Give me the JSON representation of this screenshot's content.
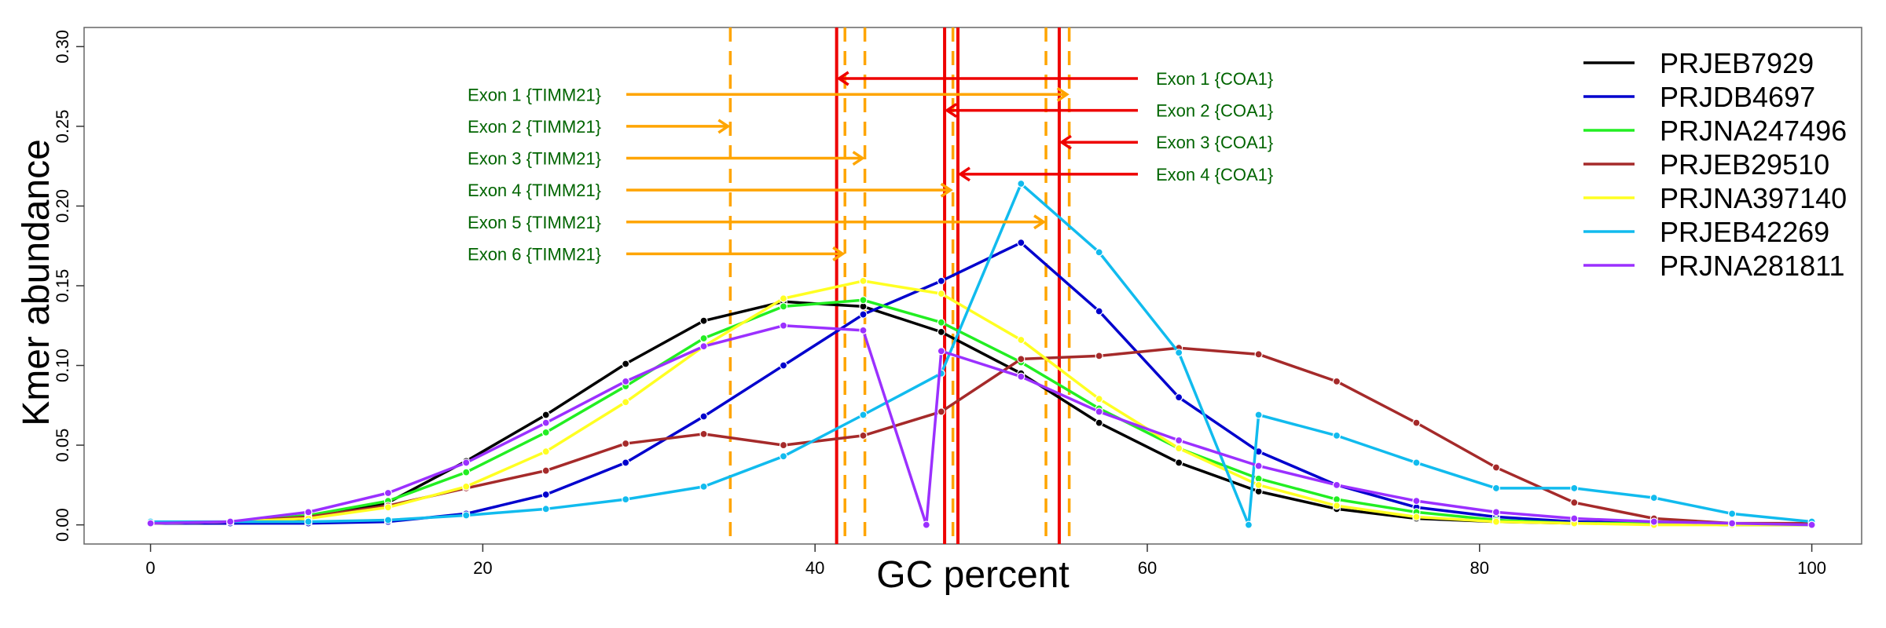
{
  "chart_data": {
    "type": "line",
    "xlabel": "GC percent",
    "ylabel": "Kmer abundance",
    "xlim": [
      -4,
      103
    ],
    "ylim": [
      -0.012,
      0.312
    ],
    "xticks": [
      "0",
      "20",
      "40",
      "60",
      "80",
      "100"
    ],
    "xtick_values": [
      0,
      20,
      40,
      60,
      80,
      100
    ],
    "yticks": [
      "0.00",
      "0.05",
      "0.10",
      "0.15",
      "0.20",
      "0.25",
      "0.30"
    ],
    "ytick_values": [
      0,
      0.05,
      0.1,
      0.15,
      0.2,
      0.25,
      0.3
    ],
    "grid": false,
    "legend_position": "top-right",
    "series": [
      {
        "name": "PRJEB7929",
        "color": "#000000",
        "x": [
          0,
          4.8,
          9.5,
          14.3,
          19,
          23.8,
          28.6,
          33.3,
          38.1,
          42.9,
          47.6,
          52.4,
          57.1,
          61.9,
          66.7,
          71.4,
          76.2,
          81,
          85.7,
          90.5,
          95.2,
          100
        ],
        "y": [
          0.001,
          0.001,
          0.004,
          0.014,
          0.04,
          0.069,
          0.101,
          0.128,
          0.14,
          0.137,
          0.121,
          0.095,
          0.064,
          0.039,
          0.021,
          0.01,
          0.004,
          0.002,
          0.001,
          0.001,
          0,
          0
        ]
      },
      {
        "name": "PRJDB4697",
        "color": "#0000cd",
        "x": [
          0,
          4.8,
          9.5,
          14.3,
          19,
          23.8,
          28.6,
          33.3,
          38.1,
          42.9,
          47.6,
          52.4,
          57.1,
          61.9,
          66.7,
          71.4,
          76.2,
          81,
          85.7,
          90.5,
          95.2,
          100
        ],
        "y": [
          0.001,
          0.001,
          0.001,
          0.002,
          0.007,
          0.019,
          0.039,
          0.068,
          0.1,
          0.132,
          0.153,
          0.177,
          0.134,
          0.08,
          0.046,
          0.025,
          0.011,
          0.005,
          0.002,
          0.001,
          0,
          0
        ]
      },
      {
        "name": "PRJNA247496",
        "color": "#22ee22",
        "x": [
          0,
          4.8,
          9.5,
          14.3,
          19,
          23.8,
          28.6,
          33.3,
          38.1,
          42.9,
          47.6,
          52.4,
          57.1,
          61.9,
          66.7,
          71.4,
          76.2,
          81,
          85.7,
          90.5,
          95.2,
          100
        ],
        "y": [
          0.001,
          0.002,
          0.006,
          0.015,
          0.033,
          0.058,
          0.087,
          0.117,
          0.137,
          0.141,
          0.127,
          0.102,
          0.073,
          0.048,
          0.029,
          0.016,
          0.008,
          0.003,
          0.001,
          0.001,
          0,
          0
        ]
      },
      {
        "name": "PRJEB29510",
        "color": "#a52a2a",
        "x": [
          0,
          4.8,
          9.5,
          14.3,
          19,
          23.8,
          28.6,
          33.3,
          38.1,
          42.9,
          47.6,
          52.4,
          57.1,
          61.9,
          66.7,
          71.4,
          76.2,
          81,
          85.7,
          90.5,
          95.2,
          100
        ],
        "y": [
          0.001,
          0.002,
          0.005,
          0.012,
          0.023,
          0.034,
          0.051,
          0.057,
          0.05,
          0.056,
          0.071,
          0.104,
          0.106,
          0.111,
          0.107,
          0.09,
          0.064,
          0.036,
          0.014,
          0.004,
          0.001,
          0.001
        ]
      },
      {
        "name": "PRJNA397140",
        "color": "#ffff22",
        "x": [
          0,
          4.8,
          9.5,
          14.3,
          19,
          23.8,
          28.6,
          33.3,
          38.1,
          42.9,
          47.6,
          52.4,
          57.1,
          61.9,
          66.7,
          71.4,
          76.2,
          81,
          85.7,
          90.5,
          95.2,
          100
        ],
        "y": [
          0.001,
          0.002,
          0.004,
          0.011,
          0.024,
          0.046,
          0.077,
          0.112,
          0.142,
          0.153,
          0.145,
          0.116,
          0.079,
          0.048,
          0.025,
          0.012,
          0.005,
          0.002,
          0.001,
          0,
          0,
          0
        ]
      },
      {
        "name": "PRJEB42269",
        "color": "#11bbee",
        "x": [
          0,
          4.8,
          9.5,
          14.3,
          19,
          23.8,
          28.6,
          33.3,
          38.1,
          42.9,
          47.6,
          52.4,
          57.1,
          61.9,
          66.1,
          66.7,
          71.4,
          76.2,
          81,
          85.7,
          90.5,
          95.2,
          100
        ],
        "y": [
          0.002,
          0.002,
          0.002,
          0.003,
          0.006,
          0.01,
          0.016,
          0.024,
          0.043,
          0.069,
          0.095,
          0.214,
          0.171,
          0.108,
          0,
          0.069,
          0.056,
          0.039,
          0.023,
          0.023,
          0.017,
          0.007,
          0.002
        ]
      },
      {
        "name": "PRJNA281811",
        "color": "#9b30ff",
        "x": [
          0,
          4.8,
          9.5,
          14.3,
          19,
          23.8,
          28.6,
          33.3,
          38.1,
          42.9,
          46.7,
          47.6,
          52.4,
          57.1,
          61.9,
          66.7,
          71.4,
          76.2,
          81,
          85.7,
          90.5,
          95.2,
          100
        ],
        "y": [
          0.001,
          0.002,
          0.008,
          0.02,
          0.039,
          0.064,
          0.09,
          0.112,
          0.125,
          0.122,
          0,
          0.109,
          0.093,
          0.071,
          0.053,
          0.037,
          0.025,
          0.015,
          0.008,
          0.004,
          0.002,
          0.001,
          0
        ]
      }
    ],
    "vlines": [
      {
        "x": 34.9,
        "color": "#ffa500",
        "style": "dashed"
      },
      {
        "x": 41.8,
        "color": "#ffa500",
        "style": "dashed"
      },
      {
        "x": 43.0,
        "color": "#ffa500",
        "style": "dashed"
      },
      {
        "x": 48.3,
        "color": "#ffa500",
        "style": "dashed"
      },
      {
        "x": 53.9,
        "color": "#ffa500",
        "style": "dashed"
      },
      {
        "x": 55.3,
        "color": "#ffa500",
        "style": "dashed"
      },
      {
        "x": 41.3,
        "color": "#ee0000",
        "style": "solid"
      },
      {
        "x": 47.8,
        "color": "#ee0000",
        "style": "solid"
      },
      {
        "x": 48.6,
        "color": "#ee0000",
        "style": "solid"
      },
      {
        "x": 54.7,
        "color": "#ee0000",
        "style": "solid"
      }
    ],
    "annotations_left": [
      {
        "label": "Exon 1 {TIMM21}",
        "y": 0.27,
        "arrow_to_x": 55.3
      },
      {
        "label": "Exon 2 {TIMM21}",
        "y": 0.25,
        "arrow_to_x": 34.9
      },
      {
        "label": "Exon 3 {TIMM21}",
        "y": 0.23,
        "arrow_to_x": 43.0
      },
      {
        "label": "Exon 4 {TIMM21}",
        "y": 0.21,
        "arrow_to_x": 48.3
      },
      {
        "label": "Exon 5 {TIMM21}",
        "y": 0.19,
        "arrow_to_x": 53.9
      },
      {
        "label": "Exon 6 {TIMM21}",
        "y": 0.17,
        "arrow_to_x": 41.8
      }
    ],
    "annotations_right": [
      {
        "label": "Exon 1 {COA1}",
        "y": 0.28,
        "arrow_to_x": 41.3
      },
      {
        "label": "Exon 2 {COA1}",
        "y": 0.26,
        "arrow_to_x": 47.8
      },
      {
        "label": "Exon 3 {COA1}",
        "y": 0.24,
        "arrow_to_x": 54.7
      },
      {
        "label": "Exon 4 {COA1}",
        "y": 0.22,
        "arrow_to_x": 48.6
      }
    ],
    "annotation_colors": {
      "left": "#ffa500",
      "right": "#ee0000",
      "text": "#006400"
    }
  }
}
